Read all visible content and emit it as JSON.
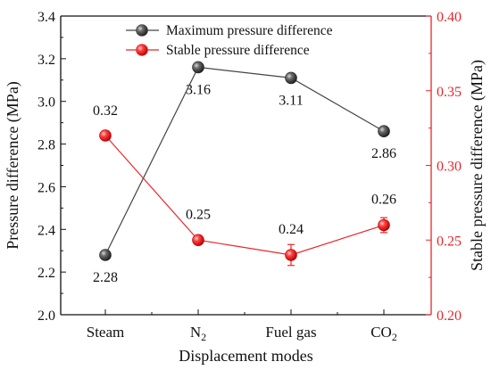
{
  "chart_data": {
    "type": "line",
    "categories": [
      "Steam",
      "N₂",
      "Fuel gas",
      "CO₂"
    ],
    "xlabel": "Displacement modes",
    "ylabel_left": "Pressure difference (MPa)",
    "ylabel_right": "Stable pressure difference (MPa)",
    "ylim_left": [
      2.0,
      3.4
    ],
    "ylim_right": [
      0.2,
      0.4
    ],
    "yticks_left": [
      "2.0",
      "2.2",
      "2.4",
      "2.6",
      "2.8",
      "3.0",
      "3.2",
      "3.4"
    ],
    "yticks_right": [
      "0.20",
      "0.25",
      "0.30",
      "0.35",
      "0.40"
    ],
    "grid": false,
    "legend_position": "top-center",
    "series": [
      {
        "name": "Maximum  pressure difference",
        "axis": "left",
        "color": "#333333",
        "values": [
          2.28,
          3.16,
          3.11,
          2.86
        ],
        "labels": [
          "2.28",
          "3.16",
          "3.11",
          "2.86"
        ]
      },
      {
        "name": "Stable pressure difference",
        "axis": "right",
        "color": "#e8262b",
        "values": [
          0.32,
          0.25,
          0.24,
          0.26
        ],
        "errors": [
          0.003,
          0.003,
          0.007,
          0.005
        ],
        "labels": [
          "0.32",
          "0.25",
          "0.24",
          "0.26"
        ]
      }
    ]
  }
}
